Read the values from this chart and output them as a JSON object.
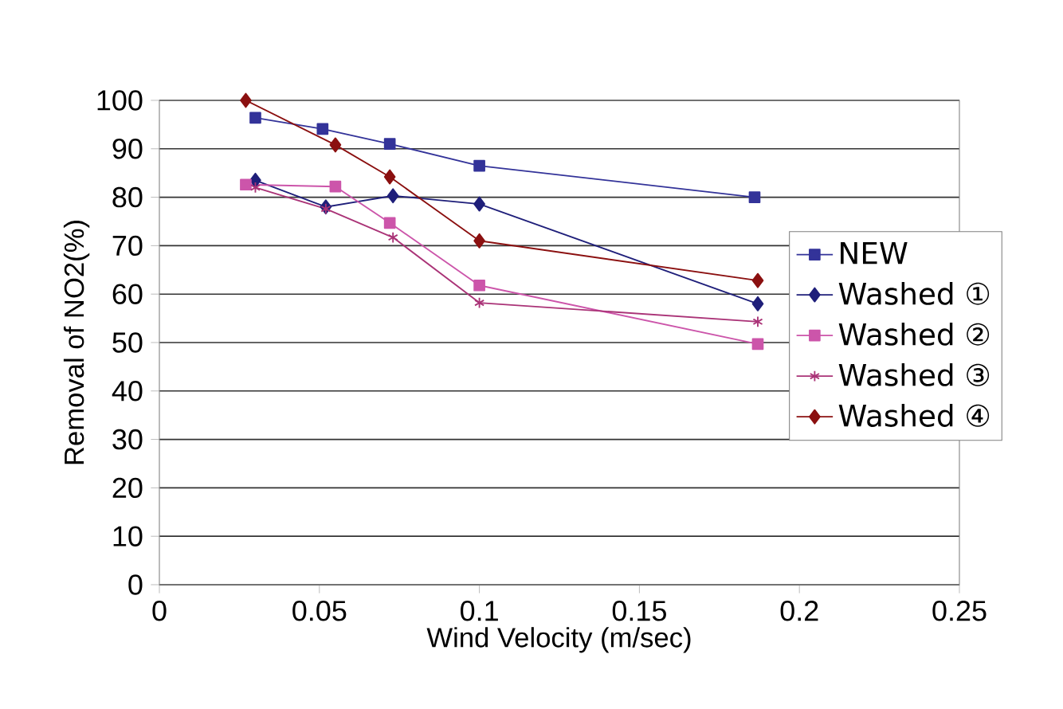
{
  "chart_data": {
    "type": "line",
    "xlabel": "Wind Velocity (m/sec)",
    "ylabel": "Removal of NO2(%)",
    "xlim": [
      0,
      0.25
    ],
    "xticks": [
      0,
      0.05,
      0.1,
      0.15,
      0.2,
      0.25
    ],
    "ylim": [
      0,
      100
    ],
    "yticks": [
      0,
      10,
      20,
      30,
      40,
      50,
      60,
      70,
      80,
      90,
      100
    ],
    "grid": "y",
    "legend": "right",
    "line_style": "solid",
    "series": [
      {
        "name": "NEW",
        "color": "#333399",
        "marker": "square",
        "x": [
          0.03,
          0.051,
          0.072,
          0.1,
          0.186
        ],
        "values": [
          96.4,
          94.1,
          91,
          86.5,
          80
        ]
      },
      {
        "name": "Washed ①",
        "color": "#1f1f7a",
        "marker": "diamond",
        "x": [
          0.03,
          0.052,
          0.073,
          0.1,
          0.187
        ],
        "values": [
          83.5,
          78,
          80.3,
          78.6,
          58
        ]
      },
      {
        "name": "Washed ②",
        "color": "#cc55aa",
        "marker": "square",
        "x": [
          0.027,
          0.055,
          0.072,
          0.1,
          0.187
        ],
        "values": [
          82.6,
          82.2,
          74.7,
          61.8,
          49.7
        ]
      },
      {
        "name": "Washed ③",
        "color": "#aa3377",
        "marker": "cross",
        "x": [
          0.03,
          0.052,
          0.073,
          0.1,
          0.187
        ],
        "values": [
          82,
          77.6,
          71.7,
          58.2,
          54.3
        ]
      },
      {
        "name": "Washed ④",
        "color": "#8b1010",
        "marker": "diamond",
        "x": [
          0.027,
          0.055,
          0.072,
          0.1,
          0.187
        ],
        "values": [
          100,
          90.8,
          84.2,
          71,
          62.8
        ]
      }
    ]
  }
}
